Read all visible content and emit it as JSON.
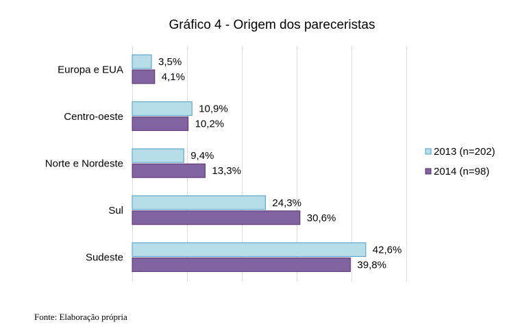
{
  "chart_data": {
    "type": "bar",
    "orientation": "horizontal",
    "title": "Gráfico 4 - Origem dos pareceristas",
    "categories": [
      "Europa e EUA",
      "Centro-oeste",
      "Norte e Nordeste",
      "Sul",
      "Sudeste"
    ],
    "series": [
      {
        "name": "2013 (n=202)",
        "values": [
          3.5,
          10.9,
          9.4,
          24.3,
          42.6
        ],
        "labels": [
          "3,5%",
          "10,9%",
          "9,4%",
          "24,3%",
          "42,6%"
        ],
        "color": "#b7dde8",
        "stroke": "#4a9bc7"
      },
      {
        "name": "2014 (n=98)",
        "values": [
          4.1,
          10.2,
          13.3,
          30.6,
          39.8
        ],
        "labels": [
          "4,1%",
          "10,2%",
          "13,3%",
          "30,6%",
          "39,8%"
        ],
        "color": "#8064a2",
        "stroke": "#5a2d6e"
      }
    ],
    "xlim": [
      0,
      50
    ],
    "grid": true,
    "legend": "right",
    "xlabel": "",
    "ylabel": ""
  },
  "source_note": "Fonte: Elaboração própria"
}
